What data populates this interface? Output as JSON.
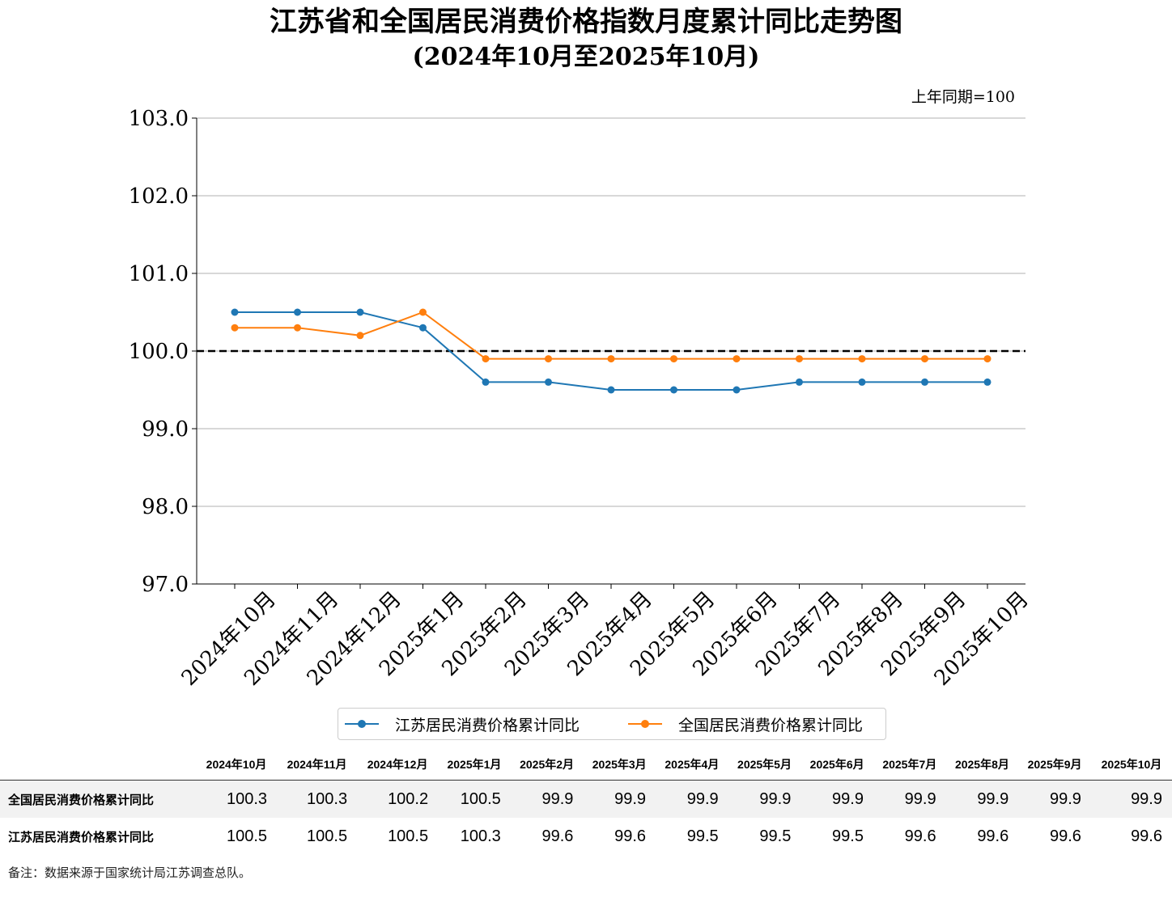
{
  "title": "江苏省和全国居民消费价格指数月度累计同比走势图",
  "subtitle": "(2024年10月至2025年10月)",
  "unit_note": "上年同期=100",
  "chart_data": {
    "type": "line",
    "categories": [
      "2024年10月",
      "2024年11月",
      "2024年12月",
      "2025年1月",
      "2025年2月",
      "2025年3月",
      "2025年4月",
      "2025年5月",
      "2025年6月",
      "2025年7月",
      "2025年8月",
      "2025年9月",
      "2025年10月"
    ],
    "series": [
      {
        "name": "江苏居民消费价格累计同比",
        "color": "#1f77b4",
        "values": [
          100.5,
          100.5,
          100.5,
          100.3,
          99.6,
          99.6,
          99.5,
          99.5,
          99.5,
          99.6,
          99.6,
          99.6,
          99.6
        ]
      },
      {
        "name": "全国居民消费价格累计同比",
        "color": "#ff7f0e",
        "values": [
          100.3,
          100.3,
          100.2,
          100.5,
          99.9,
          99.9,
          99.9,
          99.9,
          99.9,
          99.9,
          99.9,
          99.9,
          99.9
        ]
      }
    ],
    "ylim": [
      97.0,
      103.0
    ],
    "yticks": [
      "97.0",
      "98.0",
      "99.0",
      "100.0",
      "101.0",
      "102.0",
      "103.0"
    ],
    "reference_line": 100.0,
    "grid": "horizontal",
    "legend": "bottom-center"
  },
  "table": {
    "headers": [
      "2024年10月",
      "2024年11月",
      "2024年12月",
      "2025年1月",
      "2025年2月",
      "2025年3月",
      "2025年4月",
      "2025年5月",
      "2025年6月",
      "2025年7月",
      "2025年8月",
      "2025年9月",
      "2025年10月"
    ],
    "rows": [
      {
        "label": "全国居民消费价格累计同比",
        "values": [
          "100.3",
          "100.3",
          "100.2",
          "100.5",
          "99.9",
          "99.9",
          "99.9",
          "99.9",
          "99.9",
          "99.9",
          "99.9",
          "99.9",
          "99.9"
        ]
      },
      {
        "label": "江苏居民消费价格累计同比",
        "values": [
          "100.5",
          "100.5",
          "100.5",
          "100.3",
          "99.6",
          "99.6",
          "99.5",
          "99.5",
          "99.5",
          "99.6",
          "99.6",
          "99.6",
          "99.6"
        ]
      }
    ]
  },
  "note": "备注：数据来源于国家统计局江苏调查总队。"
}
